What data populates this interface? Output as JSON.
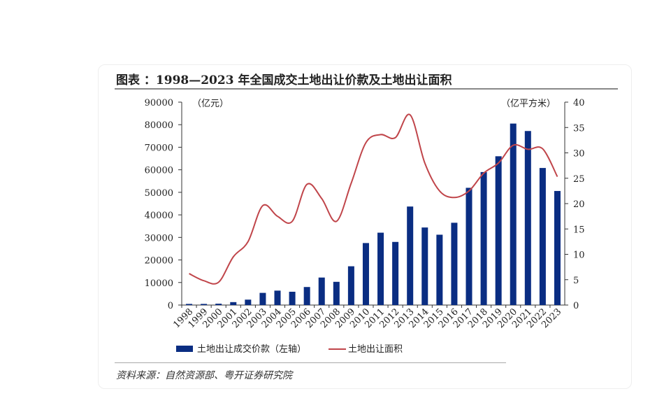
{
  "title": "图表 ：1998—2023 年全国成交土地出让价款及土地出让面积",
  "source": "资料来源：自然资源部、粤开证券研究院",
  "chart_data": {
    "type": "bar+line",
    "categories": [
      "1998",
      "1999",
      "2000",
      "2001",
      "2002",
      "2003",
      "2004",
      "2005",
      "2006",
      "2007",
      "2008",
      "2009",
      "2010",
      "2011",
      "2012",
      "2013",
      "2014",
      "2015",
      "2016",
      "2017",
      "2018",
      "2019",
      "2020",
      "2021",
      "2022",
      "2023"
    ],
    "series": [
      {
        "name": "土地出让成交价款（左轴）",
        "type": "bar",
        "axis": "left",
        "color": "#0a2d82",
        "values": [
          500,
          500,
          600,
          1300,
          2400,
          5400,
          6400,
          5900,
          8000,
          12200,
          10300,
          17200,
          27500,
          32100,
          28000,
          43700,
          34400,
          31200,
          36500,
          52000,
          59000,
          66000,
          80500,
          77200,
          60800,
          50600
        ]
      },
      {
        "name": "土地出让面积",
        "type": "line",
        "axis": "right",
        "color": "#c0454a",
        "values": [
          6.2,
          4.8,
          4.5,
          9.5,
          12.5,
          19.6,
          17.5,
          16.5,
          23.8,
          21,
          16.5,
          24,
          32,
          33.6,
          33,
          37.5,
          28,
          22.5,
          21.2,
          22.5,
          26,
          28,
          31.5,
          30.7,
          30.8,
          25.3
        ]
      }
    ],
    "y_left": {
      "label": "（亿元）",
      "min": 0,
      "max": 90000,
      "ticks": [
        0,
        10000,
        20000,
        30000,
        40000,
        50000,
        60000,
        70000,
        80000,
        90000
      ]
    },
    "y_right": {
      "label": "（亿平方米）",
      "min": 0,
      "max": 40,
      "ticks": [
        0,
        5,
        10,
        15,
        20,
        25,
        30,
        35,
        40
      ]
    },
    "grid": false,
    "legend": "bottom"
  }
}
